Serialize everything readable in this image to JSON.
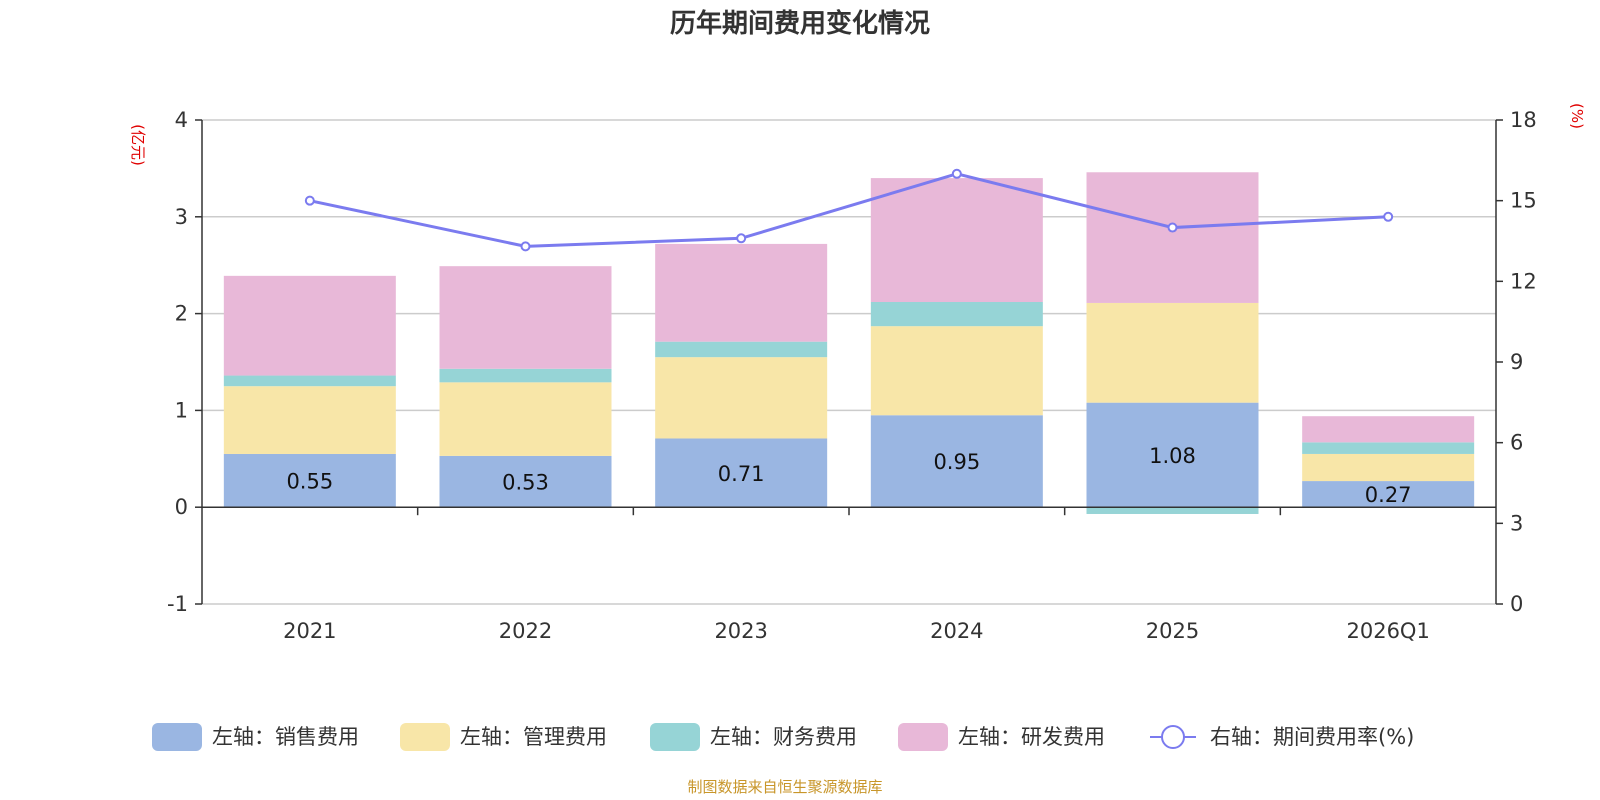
{
  "title": "历年期间费用变化情况",
  "source_note": "制图数据来自恒生聚源数据库",
  "chart_data": {
    "type": "bar",
    "stacked": true,
    "categories": [
      "2021",
      "2022",
      "2023",
      "2024",
      "2025",
      "2026Q1"
    ],
    "left_axis": {
      "unit": "(亿元)",
      "ylim": [
        -1,
        4
      ],
      "ticks": [
        -1,
        0,
        1,
        2,
        3,
        4
      ]
    },
    "right_axis": {
      "unit": "(%)",
      "ylim": [
        0,
        18
      ],
      "ticks": [
        0,
        3,
        6,
        9,
        12,
        15,
        18
      ]
    },
    "series": [
      {
        "name": "左轴：销售费用",
        "axis": "left",
        "color": "#9ab6e2",
        "values": [
          0.55,
          0.53,
          0.71,
          0.95,
          1.08,
          0.27
        ],
        "labels": [
          "0.55",
          "0.53",
          "0.71",
          "0.95",
          "1.08",
          "0.27"
        ]
      },
      {
        "name": "左轴：管理费用",
        "axis": "left",
        "color": "#f8e6a8",
        "values": [
          0.7,
          0.76,
          0.84,
          0.92,
          1.03,
          0.28
        ]
      },
      {
        "name": "左轴：财务费用",
        "axis": "left",
        "color": "#96d4d6",
        "values": [
          0.11,
          0.14,
          0.16,
          0.25,
          -0.07,
          0.12
        ]
      },
      {
        "name": "左轴：研发费用",
        "axis": "left",
        "color": "#e8b8d8",
        "values": [
          1.03,
          1.06,
          1.01,
          1.28,
          1.35,
          0.27
        ]
      },
      {
        "name": "右轴：期间费用率(%)",
        "axis": "right",
        "type": "line",
        "color": "#7b7bef",
        "values": [
          15.0,
          13.3,
          13.6,
          16.0,
          14.0,
          14.4
        ]
      }
    ],
    "grid": true,
    "legend_position": "bottom"
  }
}
